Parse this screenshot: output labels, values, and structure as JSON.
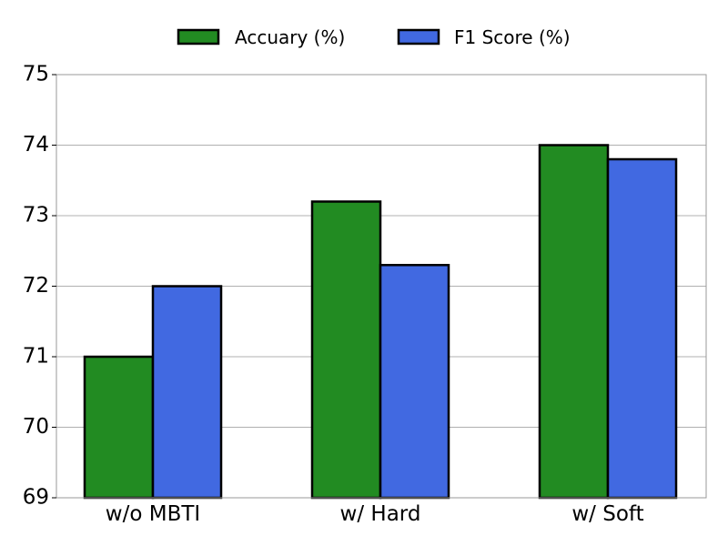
{
  "chart_data": {
    "type": "bar",
    "categories": [
      "w/o MBTI",
      "w/ Hard",
      "w/ Soft"
    ],
    "series": [
      {
        "name": "Accuary (%)",
        "values": [
          71.0,
          73.2,
          74.0
        ],
        "color": "#228B22"
      },
      {
        "name": "F1 Score (%)",
        "values": [
          72.0,
          72.3,
          73.8
        ],
        "color": "#4169E1"
      }
    ],
    "title": "",
    "xlabel": "",
    "ylabel": "",
    "ylim": [
      69,
      75
    ],
    "yticks": [
      "69",
      "70",
      "71",
      "72",
      "73",
      "74",
      "75"
    ],
    "grid": "y-major",
    "legend_position": "top-center"
  }
}
